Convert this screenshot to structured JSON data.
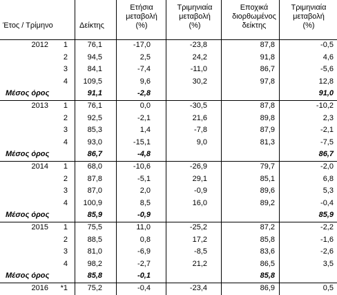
{
  "table": {
    "header": [
      [
        "Έτος / Τρίμηνο"
      ],
      [
        "Δείκτης"
      ],
      [
        "Ετήσια",
        "μεταβολή",
        "(%)"
      ],
      [
        "Τριμηνιαία",
        "μεταβολή",
        "(%)"
      ],
      [
        "Εποχικά",
        "διορθωμένος",
        "δείκτης"
      ],
      [
        "Τριμηνιαία",
        "μεταβολή",
        "(%)"
      ]
    ],
    "sections": [
      {
        "year": "2012",
        "quarters": [
          [
            "1",
            "76,1",
            "-17,0",
            "-23,8",
            "87,8",
            "-0,5"
          ],
          [
            "2",
            "94,5",
            "2,5",
            "24,2",
            "91,8",
            "4,6"
          ],
          [
            "3",
            "84,1",
            "-7,4",
            "-11,0",
            "86,7",
            "-5,6"
          ],
          [
            "4",
            "109,5",
            "9,6",
            "30,2",
            "97,8",
            "12,8"
          ]
        ],
        "average": [
          "Μέσος όρος",
          "91,1",
          "-2,8",
          null,
          null,
          "91,0"
        ]
      },
      {
        "year": "2013",
        "quarters": [
          [
            "1",
            "76,1",
            "0,0",
            "-30,5",
            "87,8",
            "-10,2"
          ],
          [
            "2",
            "92,5",
            "-2,1",
            "21,6",
            "89,8",
            "2,3"
          ],
          [
            "3",
            "85,3",
            "1,4",
            "-7,8",
            "87,9",
            "-2,1"
          ],
          [
            "4",
            "93,0",
            "-15,1",
            "9,0",
            "81,3",
            "-7,5"
          ]
        ],
        "average": [
          "Μέσος όρος",
          "86,7",
          "-4,8",
          null,
          null,
          "86,7"
        ]
      },
      {
        "year": "2014",
        "quarters": [
          [
            "1",
            "68,0",
            "-10,6",
            "-26,9",
            "79,7",
            "-2,0"
          ],
          [
            "2",
            "87,8",
            "-5,1",
            "29,1",
            "85,1",
            "6,8"
          ],
          [
            "3",
            "87,0",
            "2,0",
            "-0,9",
            "89,6",
            "5,3"
          ],
          [
            "4",
            "100,9",
            "8,5",
            "16,0",
            "89,2",
            "-0,4"
          ]
        ],
        "average": [
          "Μέσος όρος",
          "85,9",
          "-0,9",
          null,
          null,
          "85,9"
        ]
      },
      {
        "year": "2015",
        "quarters": [
          [
            "1",
            "75,5",
            "11,0",
            "-25,2",
            "87,2",
            "-2,2"
          ],
          [
            "2",
            "88,5",
            "0,8",
            "17,2",
            "85,8",
            "-1,6"
          ],
          [
            "3",
            "81,0",
            "-6,9",
            "-8,5",
            "83,6",
            "-2,6"
          ],
          [
            "4",
            "98,2",
            "-2,7",
            "21,2",
            "86,5",
            "3,5"
          ]
        ],
        "average": [
          "Μέσος όρος",
          "85,8",
          "-0,1",
          null,
          "85,8",
          null
        ]
      },
      {
        "year": "2016",
        "quarters": [
          [
            "*1",
            "75,2",
            "-0,4",
            "-23,4",
            "86,9",
            "0,5"
          ]
        ]
      }
    ]
  }
}
